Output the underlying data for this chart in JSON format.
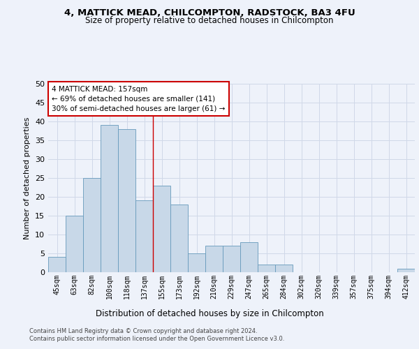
{
  "title1": "4, MATTICK MEAD, CHILCOMPTON, RADSTOCK, BA3 4FU",
  "title2": "Size of property relative to detached houses in Chilcompton",
  "xlabel": "Distribution of detached houses by size in Chilcompton",
  "ylabel": "Number of detached properties",
  "categories": [
    "45sqm",
    "63sqm",
    "82sqm",
    "100sqm",
    "118sqm",
    "137sqm",
    "155sqm",
    "173sqm",
    "192sqm",
    "210sqm",
    "229sqm",
    "247sqm",
    "265sqm",
    "284sqm",
    "302sqm",
    "320sqm",
    "339sqm",
    "357sqm",
    "375sqm",
    "394sqm",
    "412sqm"
  ],
  "values": [
    4,
    15,
    25,
    39,
    38,
    19,
    23,
    18,
    5,
    7,
    7,
    8,
    2,
    2,
    0,
    0,
    0,
    0,
    0,
    0,
    1
  ],
  "bar_color": "#c8d8e8",
  "bar_edge_color": "#6699bb",
  "grid_color": "#d0d8e8",
  "background_color": "#eef2fa",
  "vline_x": 5.5,
  "annotation_box_text": "4 MATTICK MEAD: 157sqm\n← 69% of detached houses are smaller (141)\n30% of semi-detached houses are larger (61) →",
  "annotation_box_color": "#ffffff",
  "annotation_box_edge_color": "#cc0000",
  "vline_color": "#cc0000",
  "ylim": [
    0,
    50
  ],
  "yticks": [
    0,
    5,
    10,
    15,
    20,
    25,
    30,
    35,
    40,
    45,
    50
  ],
  "footnote1": "Contains HM Land Registry data © Crown copyright and database right 2024.",
  "footnote2": "Contains public sector information licensed under the Open Government Licence v3.0."
}
